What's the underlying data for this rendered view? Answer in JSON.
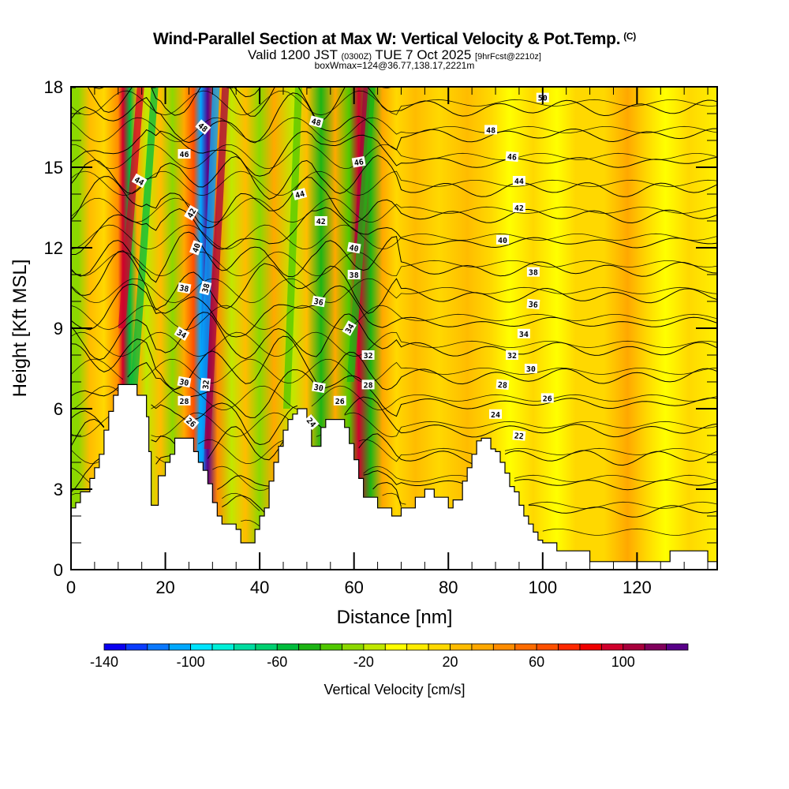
{
  "header": {
    "title": "Wind-Parallel Section at Max W: Vertical Velocity & Pot.Temp.",
    "copyright": "(C)",
    "valid_prefix": "Valid 1200 JST",
    "valid_utc": "(0300Z)",
    "valid_date": "TUE 7 Oct 2025",
    "forecast": "[9hrFcst@2210z]",
    "box_info": "boxWmax=124@36.77,138.17,2221m"
  },
  "chart_data": {
    "type": "heatmap",
    "title": "Wind-Parallel Section at Max W: Vertical Velocity & Pot.Temp.",
    "xlabel": "Distance [nm]",
    "ylabel": "Height [Kft MSL]",
    "xlim": [
      0,
      137
    ],
    "ylim": [
      0,
      18
    ],
    "xticks": [
      0,
      20,
      40,
      60,
      80,
      100,
      120
    ],
    "xtick_labels": [
      "0",
      "20",
      "40",
      "60",
      "80",
      "100",
      "120"
    ],
    "yticks": [
      0,
      3,
      6,
      9,
      12,
      15,
      18
    ],
    "ytick_labels": [
      "0",
      "3",
      "6",
      "9",
      "12",
      "15",
      "18"
    ],
    "colorbar": {
      "label": "Vertical Velocity [cm/s]",
      "min": -140,
      "max": 140,
      "step": 10,
      "tick_values": [
        -140,
        -100,
        -60,
        -20,
        20,
        60,
        100
      ],
      "tick_labels": [
        "-140",
        "-100",
        "-60",
        "-20",
        "20",
        "60",
        "100"
      ],
      "colors": [
        "#0a00f0",
        "#0a3cff",
        "#0a78ff",
        "#00a8ff",
        "#00e4ff",
        "#00f0d8",
        "#00dca0",
        "#00d070",
        "#00bc3c",
        "#1cb414",
        "#50c800",
        "#8cd800",
        "#c0e800",
        "#ffff00",
        "#ffec00",
        "#ffd800",
        "#ffbc00",
        "#ffa800",
        "#ff8c00",
        "#ff6c00",
        "#ff5000",
        "#ff2800",
        "#f00000",
        "#d0002c",
        "#a8003c",
        "#80005c",
        "#580088"
      ]
    },
    "vertical_velocity_bands": [
      {
        "x": 1.5,
        "w": -30
      },
      {
        "x": 4,
        "w": 20
      },
      {
        "x": 7,
        "w": 10
      },
      {
        "x": 10,
        "w": 40
      },
      {
        "x": 11,
        "w": 90
      },
      {
        "x": 12.5,
        "w": -60
      },
      {
        "x": 14,
        "w": 30
      },
      {
        "x": 16,
        "w": -20
      },
      {
        "x": 19,
        "w": 20
      },
      {
        "x": 21.5,
        "w": -30
      },
      {
        "x": 24,
        "w": 30
      },
      {
        "x": 26,
        "w": 60
      },
      {
        "x": 27.5,
        "w": -110
      },
      {
        "x": 29,
        "w": 120
      },
      {
        "x": 31,
        "w": 40
      },
      {
        "x": 34,
        "w": -20
      },
      {
        "x": 37,
        "w": 20
      },
      {
        "x": 40,
        "w": -30
      },
      {
        "x": 43,
        "w": 30
      },
      {
        "x": 47,
        "w": -20
      },
      {
        "x": 50,
        "w": 20
      },
      {
        "x": 53,
        "w": -50
      },
      {
        "x": 56,
        "w": 30
      },
      {
        "x": 59,
        "w": -40
      },
      {
        "x": 61,
        "w": 90
      },
      {
        "x": 63.5,
        "w": -50
      },
      {
        "x": 66,
        "w": 30
      },
      {
        "x": 69,
        "w": 10
      },
      {
        "x": 73,
        "w": 20
      },
      {
        "x": 78,
        "w": 10
      },
      {
        "x": 84,
        "w": 20
      },
      {
        "x": 89,
        "w": 10
      },
      {
        "x": 93,
        "w": -10
      },
      {
        "x": 98,
        "w": 10
      },
      {
        "x": 103,
        "w": -10
      },
      {
        "x": 107,
        "w": 10
      },
      {
        "x": 113,
        "w": 10
      },
      {
        "x": 118,
        "w": 30
      },
      {
        "x": 122,
        "w": 10
      },
      {
        "x": 126,
        "w": -10
      },
      {
        "x": 131,
        "w": 10
      },
      {
        "x": 136,
        "w": 0
      }
    ],
    "terrain_kft": [
      [
        0,
        2.3
      ],
      [
        1,
        2.5
      ],
      [
        2,
        2.9
      ],
      [
        4,
        3.4
      ],
      [
        5,
        3.8
      ],
      [
        6,
        4.3
      ],
      [
        7,
        5.2
      ],
      [
        8,
        5.9
      ],
      [
        9,
        6.5
      ],
      [
        10,
        6.9
      ],
      [
        13,
        6.9
      ],
      [
        14,
        6.5
      ],
      [
        16,
        5.7
      ],
      [
        16.5,
        4.4
      ],
      [
        17,
        2.4
      ],
      [
        18,
        2.4
      ],
      [
        18.5,
        3.5
      ],
      [
        20,
        4.0
      ],
      [
        21,
        4.3
      ],
      [
        22,
        4.9
      ],
      [
        25,
        4.9
      ],
      [
        26,
        4.4
      ],
      [
        27,
        4.0
      ],
      [
        28,
        3.7
      ],
      [
        29,
        3.2
      ],
      [
        30,
        2.5
      ],
      [
        31,
        2.0
      ],
      [
        32,
        1.7
      ],
      [
        35,
        1.5
      ],
      [
        36,
        1.0
      ],
      [
        38,
        1.0
      ],
      [
        39,
        1.5
      ],
      [
        40,
        2.0
      ],
      [
        41,
        2.3
      ],
      [
        42,
        3.3
      ],
      [
        43,
        4.0
      ],
      [
        44,
        4.6
      ],
      [
        45,
        5.2
      ],
      [
        46,
        5.6
      ],
      [
        47,
        5.8
      ],
      [
        48,
        6.0
      ],
      [
        49,
        6.0
      ],
      [
        50,
        5.6
      ],
      [
        51,
        4.6
      ],
      [
        52,
        4.6
      ],
      [
        53,
        5.3
      ],
      [
        54,
        5.6
      ],
      [
        56,
        5.6
      ],
      [
        58,
        5.3
      ],
      [
        59,
        4.7
      ],
      [
        60,
        4.1
      ],
      [
        61,
        3.4
      ],
      [
        62,
        2.7
      ],
      [
        63,
        2.7
      ],
      [
        64,
        2.7
      ],
      [
        65,
        2.3
      ],
      [
        66,
        2.3
      ],
      [
        68,
        2.0
      ],
      [
        69,
        2.0
      ],
      [
        70,
        2.3
      ],
      [
        72,
        2.3
      ],
      [
        73,
        2.7
      ],
      [
        75,
        3.0
      ],
      [
        76,
        3.0
      ],
      [
        77,
        2.7
      ],
      [
        79,
        2.7
      ],
      [
        80,
        2.3
      ],
      [
        81,
        2.6
      ],
      [
        83,
        3.3
      ],
      [
        84,
        3.8
      ],
      [
        85,
        4.3
      ],
      [
        86,
        4.8
      ],
      [
        87,
        4.9
      ],
      [
        88,
        4.9
      ],
      [
        89,
        4.5
      ],
      [
        90,
        4.4
      ],
      [
        91,
        4.0
      ],
      [
        92,
        3.6
      ],
      [
        93,
        3.1
      ],
      [
        94,
        2.9
      ],
      [
        95,
        2.4
      ],
      [
        96,
        2.0
      ],
      [
        97,
        1.7
      ],
      [
        98,
        1.4
      ],
      [
        99,
        1.1
      ],
      [
        100,
        1.0
      ],
      [
        103,
        0.7
      ],
      [
        107,
        0.7
      ],
      [
        110,
        0.3
      ],
      [
        127,
        0.3
      ],
      [
        127,
        0.7
      ],
      [
        135,
        0.7
      ],
      [
        135,
        0.3
      ],
      [
        137,
        0.3
      ]
    ],
    "isentrope_labels": [
      {
        "x": 28,
        "y": 16.5,
        "text": "48",
        "rot": 40
      },
      {
        "x": 24,
        "y": 15.5,
        "text": "46",
        "rot": 0
      },
      {
        "x": 14.5,
        "y": 14.5,
        "text": "44",
        "rot": 30
      },
      {
        "x": 25.5,
        "y": 13.3,
        "text": "42",
        "rot": -60
      },
      {
        "x": 26.5,
        "y": 12.0,
        "text": "40",
        "rot": -70
      },
      {
        "x": 24,
        "y": 10.5,
        "text": "38",
        "rot": 10
      },
      {
        "x": 28.5,
        "y": 10.5,
        "text": "38",
        "rot": -75
      },
      {
        "x": 23.5,
        "y": 8.8,
        "text": "34",
        "rot": 30
      },
      {
        "x": 24,
        "y": 7.0,
        "text": "30",
        "rot": 10
      },
      {
        "x": 24,
        "y": 6.3,
        "text": "28",
        "rot": 0
      },
      {
        "x": 25.5,
        "y": 5.5,
        "text": "26",
        "rot": 40
      },
      {
        "x": 28.5,
        "y": 6.9,
        "text": "32",
        "rot": -85
      },
      {
        "x": 52,
        "y": 16.7,
        "text": "48",
        "rot": 15
      },
      {
        "x": 61,
        "y": 15.2,
        "text": "46",
        "rot": -10
      },
      {
        "x": 48.5,
        "y": 14.0,
        "text": "44",
        "rot": -15
      },
      {
        "x": 53,
        "y": 13.0,
        "text": "42",
        "rot": 0
      },
      {
        "x": 60,
        "y": 12.0,
        "text": "40",
        "rot": 10
      },
      {
        "x": 60,
        "y": 11.0,
        "text": "38",
        "rot": 0
      },
      {
        "x": 52.5,
        "y": 10.0,
        "text": "36",
        "rot": 10
      },
      {
        "x": 59,
        "y": 9.0,
        "text": "34",
        "rot": -60
      },
      {
        "x": 63,
        "y": 8.0,
        "text": "32",
        "rot": 0
      },
      {
        "x": 52.5,
        "y": 6.8,
        "text": "30",
        "rot": 10
      },
      {
        "x": 63,
        "y": 6.9,
        "text": "28",
        "rot": 0
      },
      {
        "x": 57,
        "y": 6.3,
        "text": "26",
        "rot": 0
      },
      {
        "x": 51,
        "y": 5.5,
        "text": "24",
        "rot": 50
      },
      {
        "x": 100,
        "y": 17.6,
        "text": "50",
        "rot": 0
      },
      {
        "x": 89,
        "y": 16.4,
        "text": "48",
        "rot": 0
      },
      {
        "x": 93.5,
        "y": 15.4,
        "text": "46",
        "rot": 5
      },
      {
        "x": 95,
        "y": 14.5,
        "text": "44",
        "rot": 0
      },
      {
        "x": 95,
        "y": 13.5,
        "text": "42",
        "rot": 0
      },
      {
        "x": 91.5,
        "y": 12.3,
        "text": "40",
        "rot": 0
      },
      {
        "x": 98,
        "y": 11.1,
        "text": "38",
        "rot": 0
      },
      {
        "x": 98,
        "y": 9.9,
        "text": "36",
        "rot": 5
      },
      {
        "x": 96,
        "y": 8.8,
        "text": "34",
        "rot": 0
      },
      {
        "x": 93.5,
        "y": 8.0,
        "text": "32",
        "rot": 0
      },
      {
        "x": 97.5,
        "y": 7.5,
        "text": "30",
        "rot": 0
      },
      {
        "x": 91.5,
        "y": 6.9,
        "text": "28",
        "rot": 5
      },
      {
        "x": 101,
        "y": 6.4,
        "text": "26",
        "rot": 0
      },
      {
        "x": 90,
        "y": 5.8,
        "text": "24",
        "rot": 0
      },
      {
        "x": 95,
        "y": 5.0,
        "text": "22",
        "rot": 5
      }
    ],
    "isentrope_levels_K": [
      16,
      18,
      20,
      22,
      24,
      26,
      28,
      30,
      32,
      34,
      36,
      38,
      40,
      42,
      44,
      46,
      48,
      50
    ],
    "grid": false
  }
}
